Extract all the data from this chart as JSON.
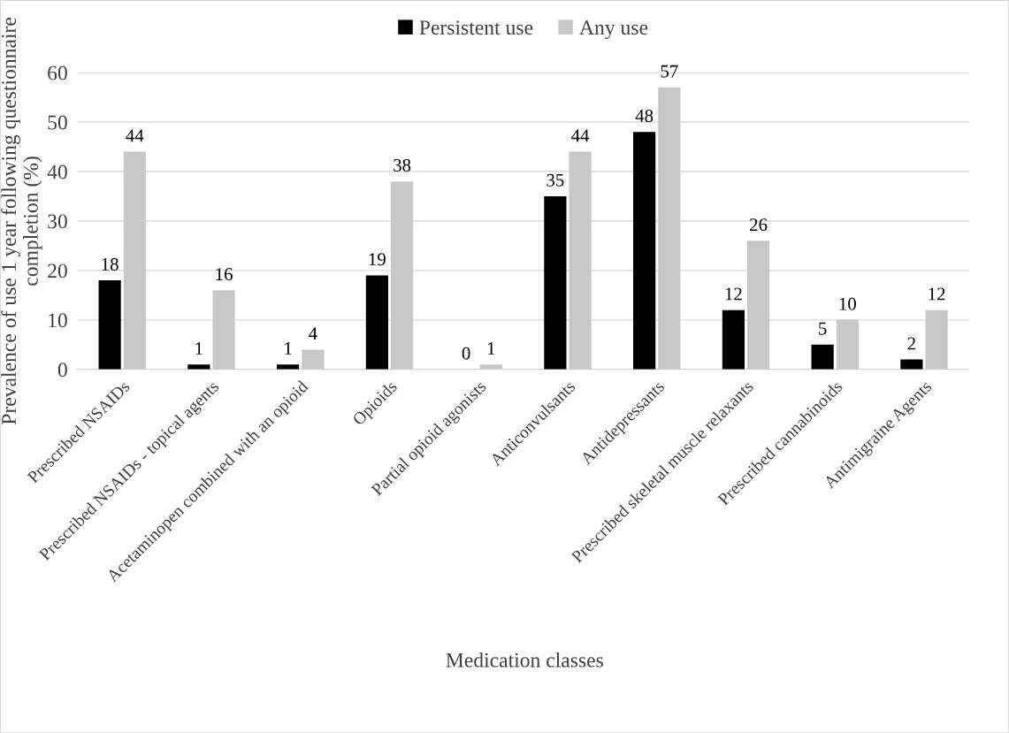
{
  "chart_data": {
    "type": "bar",
    "xlabel": "Medication classes",
    "ylabel": "Prevalence of use 1 year following questionnaire completion (%)",
    "categories": [
      "Prescribed NSAIDs",
      "Prescribed NSAIDs - topical agents",
      "Acetaminopen combined with an opioid",
      "Opioids",
      "Partial opioid agonists",
      "Anticonvulsants",
      "Antidepressants",
      "Prescribed skeletal muscle relaxants",
      "Prescribed cannabinoids",
      "Antimigraine Agents"
    ],
    "series": [
      {
        "name": "Persistent use",
        "color": "#000000",
        "values": [
          18,
          1,
          1,
          19,
          0,
          35,
          48,
          12,
          5,
          2
        ]
      },
      {
        "name": "Any use",
        "color": "#c8c8c8",
        "values": [
          44,
          16,
          4,
          38,
          1,
          44,
          57,
          26,
          10,
          12
        ]
      }
    ],
    "ylim": [
      0,
      60
    ],
    "yticks": [
      0,
      10,
      20,
      30,
      40,
      50,
      60
    ],
    "grid": "y",
    "legend": "top",
    "data_labels": true
  }
}
